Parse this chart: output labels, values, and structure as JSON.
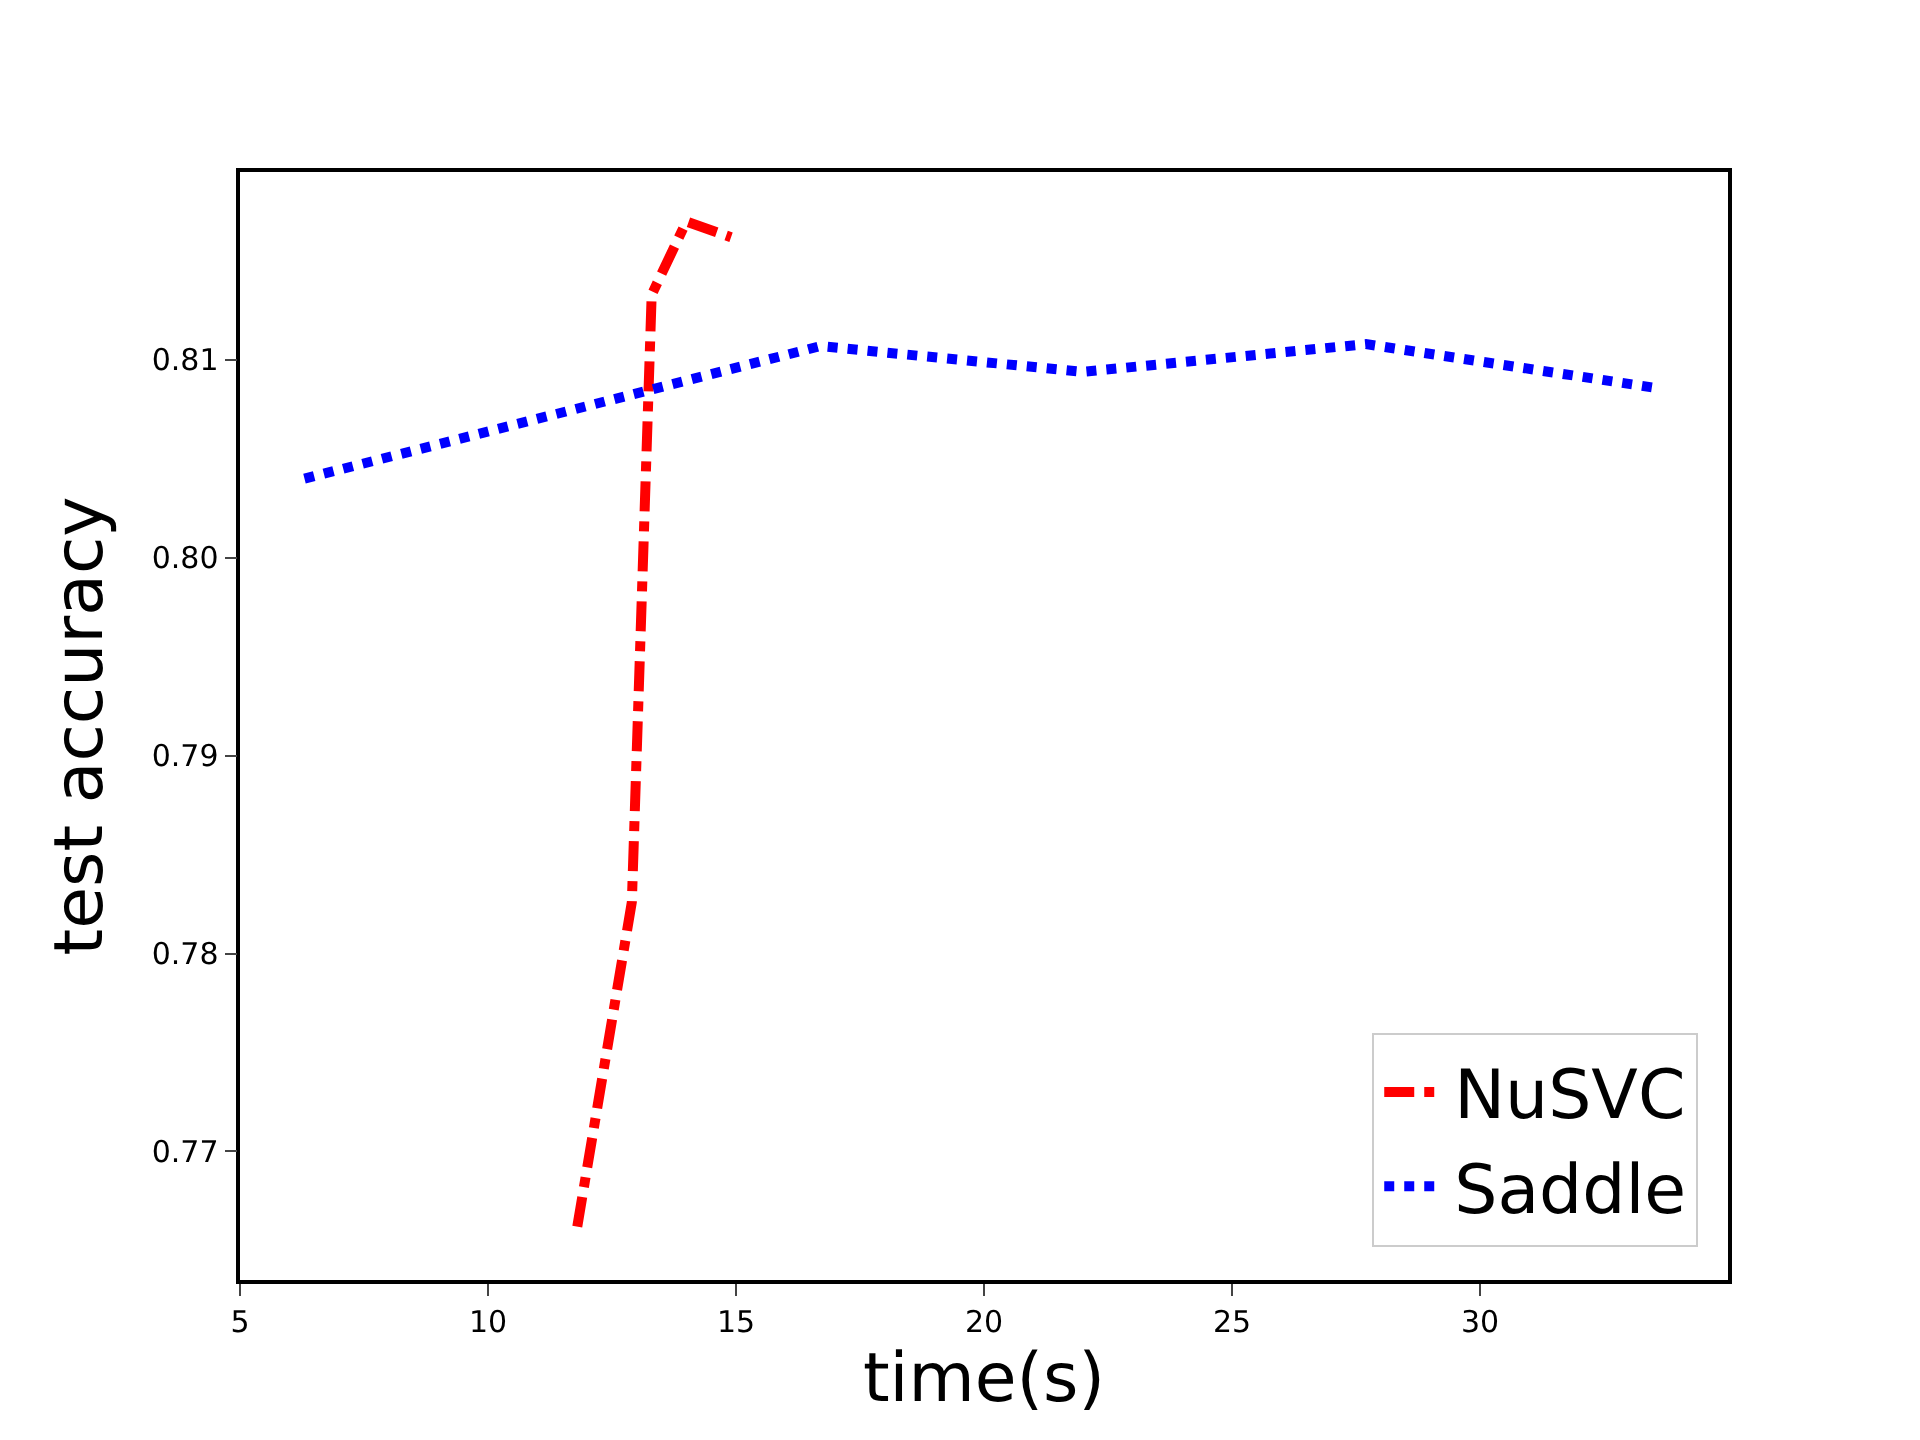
{
  "chart_data": {
    "type": "line",
    "xlabel": "time(s)",
    "ylabel": "test accuracy",
    "xlim": [
      5,
      35
    ],
    "ylim": [
      0.7635,
      0.8195
    ],
    "xticks": [
      5,
      10,
      15,
      20,
      25,
      30
    ],
    "yticks": [
      0.77,
      0.78,
      0.79,
      {
        "value": 0.8,
        "label": "0.80"
      },
      0.81
    ],
    "grid": false,
    "legend": "bottom right",
    "marker": "none",
    "series": [
      {
        "name": "NuSVC",
        "color": "#ff0000",
        "line_style": "dashdot",
        "x": [
          11.8,
          12.9,
          13.3,
          14.0,
          14.9
        ],
        "values": [
          0.7662,
          0.7826,
          0.8133,
          0.817,
          0.8162
        ]
      },
      {
        "name": "Saddle",
        "color": "#0000ff",
        "line_style": "dotted",
        "x": [
          6.3,
          16.7,
          22,
          27.7,
          33.5
        ],
        "values": [
          0.804,
          0.8107,
          0.8094,
          0.8108,
          0.8086
        ]
      }
    ]
  }
}
